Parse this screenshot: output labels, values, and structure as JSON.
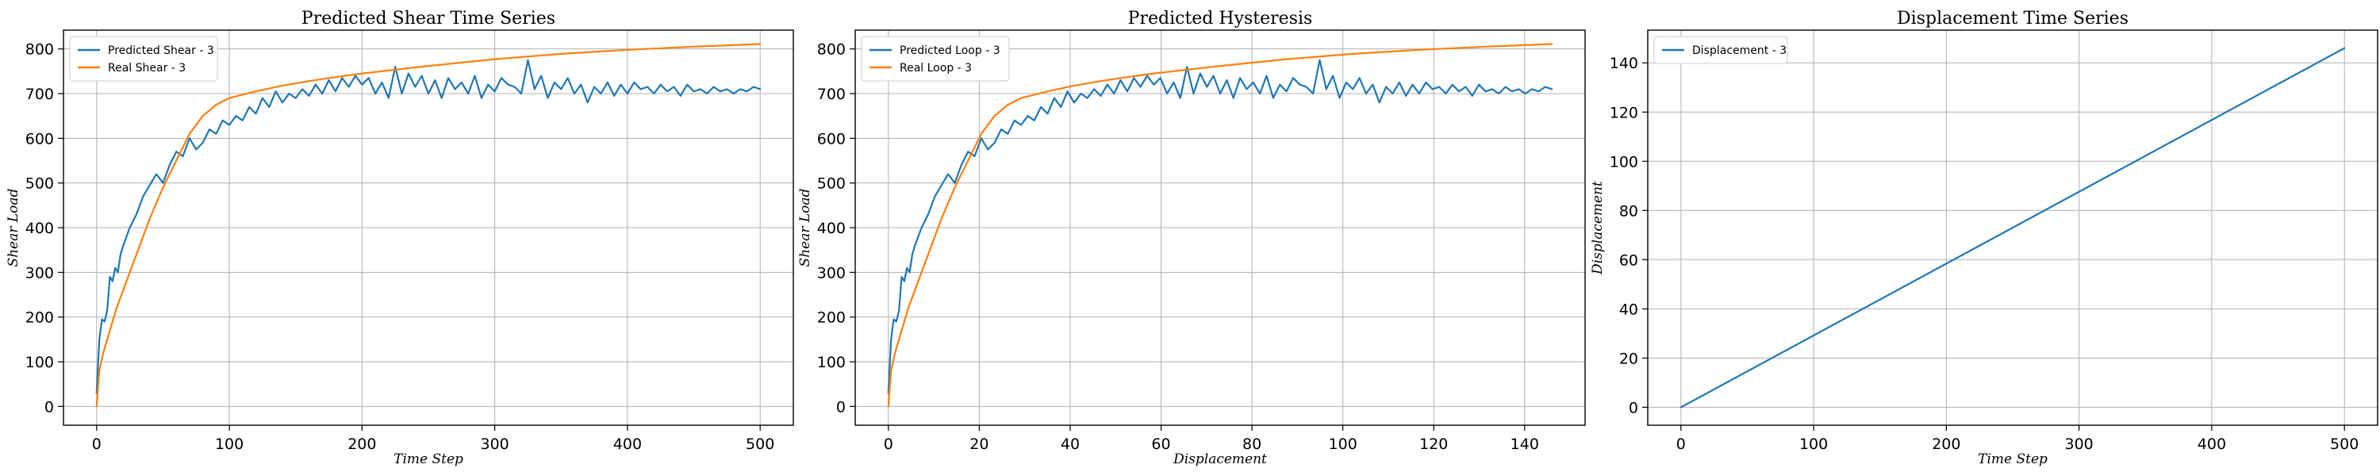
{
  "chart_data": [
    {
      "type": "line",
      "title": "Predicted Shear Time Series",
      "xlabel": "Time Step",
      "ylabel": "Shear Load",
      "xlim": [
        -25,
        525
      ],
      "ylim": [
        -42,
        842
      ],
      "xticks": [
        0,
        100,
        200,
        300,
        400,
        500
      ],
      "yticks": [
        0,
        100,
        200,
        300,
        400,
        500,
        600,
        700,
        800
      ],
      "grid": true,
      "legend_position": "top-left",
      "series": [
        {
          "name": "Predicted Shear - 3",
          "color": "#1f77b4",
          "x": [
            0,
            2,
            4,
            6,
            8,
            10,
            12,
            14,
            16,
            18,
            20,
            25,
            30,
            35,
            40,
            45,
            50,
            55,
            60,
            65,
            70,
            75,
            80,
            85,
            90,
            95,
            100,
            105,
            110,
            115,
            120,
            125,
            130,
            135,
            140,
            145,
            150,
            155,
            160,
            165,
            170,
            175,
            180,
            185,
            190,
            195,
            200,
            205,
            210,
            215,
            220,
            225,
            230,
            235,
            240,
            245,
            250,
            255,
            260,
            265,
            270,
            275,
            280,
            285,
            290,
            295,
            300,
            305,
            310,
            315,
            320,
            325,
            330,
            335,
            340,
            345,
            350,
            355,
            360,
            365,
            370,
            375,
            380,
            385,
            390,
            395,
            400,
            405,
            410,
            415,
            420,
            425,
            430,
            435,
            440,
            445,
            450,
            455,
            460,
            465,
            470,
            475,
            480,
            485,
            490,
            495,
            500
          ],
          "y": [
            30,
            150,
            195,
            190,
            215,
            290,
            280,
            310,
            300,
            340,
            360,
            400,
            430,
            470,
            495,
            520,
            500,
            540,
            570,
            560,
            600,
            575,
            590,
            620,
            610,
            640,
            630,
            650,
            640,
            670,
            655,
            690,
            670,
            705,
            680,
            700,
            690,
            710,
            695,
            720,
            700,
            730,
            705,
            735,
            715,
            740,
            720,
            735,
            700,
            725,
            690,
            760,
            700,
            745,
            715,
            740,
            700,
            730,
            690,
            735,
            710,
            725,
            700,
            740,
            690,
            720,
            705,
            735,
            720,
            715,
            700,
            775,
            710,
            740,
            690,
            725,
            710,
            735,
            700,
            720,
            680,
            715,
            700,
            725,
            695,
            720,
            700,
            725,
            710,
            715,
            700,
            720,
            705,
            715,
            695,
            720,
            705,
            710,
            700,
            715,
            705,
            710,
            700,
            710,
            705,
            715,
            710
          ]
        },
        {
          "name": "Real Shear - 3",
          "color": "#ff7f0e",
          "x": [
            0,
            2,
            5,
            10,
            15,
            20,
            25,
            30,
            40,
            50,
            60,
            70,
            80,
            90,
            100,
            120,
            140,
            160,
            180,
            200,
            250,
            300,
            350,
            400,
            450,
            500
          ],
          "y": [
            0,
            80,
            120,
            170,
            220,
            260,
            300,
            340,
            420,
            490,
            550,
            610,
            650,
            675,
            690,
            705,
            718,
            728,
            737,
            745,
            762,
            777,
            789,
            798,
            805,
            811
          ]
        }
      ]
    },
    {
      "type": "line",
      "title": "Predicted Hysteresis",
      "xlabel": "Displacement",
      "ylabel": "Shear Load",
      "xlim": [
        -7.3,
        153.3
      ],
      "ylim": [
        -42,
        842
      ],
      "xticks": [
        0,
        20,
        40,
        60,
        80,
        100,
        120,
        140
      ],
      "yticks": [
        0,
        100,
        200,
        300,
        400,
        500,
        600,
        700,
        800
      ],
      "grid": true,
      "legend_position": "top-left",
      "series": [
        {
          "name": "Predicted Loop - 3",
          "color": "#1f77b4",
          "x_scale": 0.292,
          "y_from_series": "Predicted Shear - 3"
        },
        {
          "name": "Real Loop - 3",
          "color": "#ff7f0e",
          "x_scale": 0.292,
          "y_from_series": "Real Shear - 3"
        }
      ]
    },
    {
      "type": "line",
      "title": "Displacement Time Series",
      "xlabel": "Time Step",
      "ylabel": "Displacement",
      "xlim": [
        -25,
        525
      ],
      "ylim": [
        -7.3,
        153.3
      ],
      "xticks": [
        0,
        100,
        200,
        300,
        400,
        500
      ],
      "yticks": [
        0,
        20,
        40,
        60,
        80,
        100,
        120,
        140
      ],
      "grid": true,
      "legend_position": "top-left",
      "series": [
        {
          "name": "Displacement - 3",
          "color": "#1f77b4",
          "x": [
            0,
            500
          ],
          "y": [
            0,
            146
          ]
        }
      ]
    }
  ]
}
